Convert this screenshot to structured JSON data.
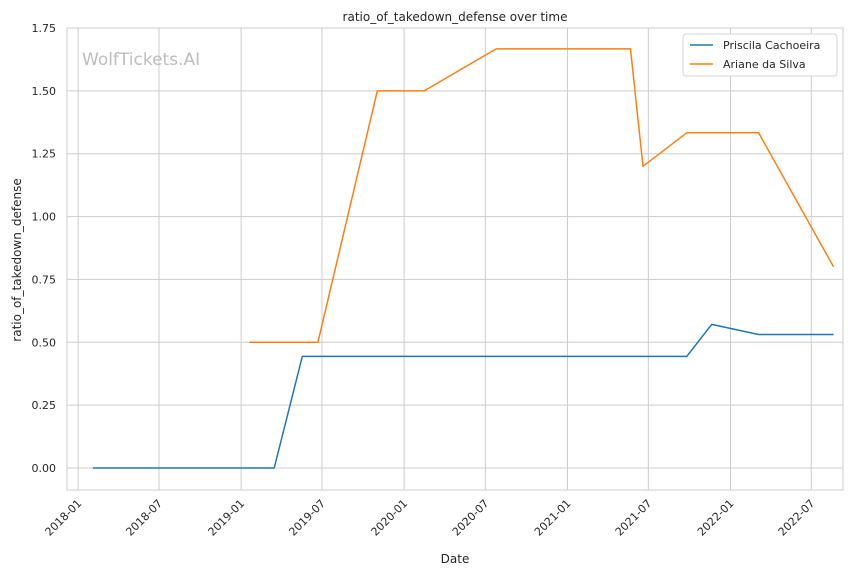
{
  "chart_data": {
    "type": "line",
    "title": "ratio_of_takedown_defense over time",
    "xlabel": "Date",
    "ylabel": "ratio_of_takedown_defense",
    "watermark": "WolfTickets.AI",
    "x_ticks": [
      "2018-01",
      "2018-07",
      "2019-01",
      "2019-07",
      "2020-01",
      "2020-07",
      "2021-01",
      "2021-07",
      "2022-01",
      "2022-07"
    ],
    "y_ticks": [
      "0.00",
      "0.25",
      "0.50",
      "0.75",
      "1.00",
      "1.25",
      "1.50",
      "1.75"
    ],
    "xlim": [
      "2017-12-07",
      "2022-09-10"
    ],
    "ylim": [
      -0.0875,
      1.75
    ],
    "grid": true,
    "legend_position": "top-right",
    "series": [
      {
        "name": "Priscila Cachoeira",
        "color": "#1f77b4",
        "points": [
          [
            "2018-02-03",
            0.0
          ],
          [
            "2019-03-16",
            0.0
          ],
          [
            "2019-05-18",
            0.444
          ],
          [
            "2021-09-25",
            0.444
          ],
          [
            "2021-11-20",
            0.571
          ],
          [
            "2022-03-05",
            0.531
          ],
          [
            "2022-08-20",
            0.531
          ]
        ]
      },
      {
        "name": "Ariane da Silva",
        "color": "#ff7f0e",
        "points": [
          [
            "2019-01-19",
            0.5
          ],
          [
            "2019-06-22",
            0.5
          ],
          [
            "2019-11-02",
            1.5
          ],
          [
            "2020-02-15",
            1.5
          ],
          [
            "2020-07-25",
            1.667
          ],
          [
            "2021-05-22",
            1.667
          ],
          [
            "2021-06-19",
            1.2
          ],
          [
            "2021-09-25",
            1.333
          ],
          [
            "2022-03-05",
            1.333
          ],
          [
            "2022-08-20",
            0.8
          ]
        ]
      }
    ]
  }
}
